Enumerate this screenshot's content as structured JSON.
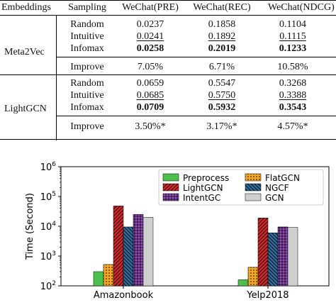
{
  "table": {
    "headers": [
      "Embeddings",
      "Sampling",
      "WeChat(PRE)",
      "WeChat(REC)",
      "WeChat(NDCG)"
    ],
    "groups": [
      {
        "name": "Meta2Vec",
        "rows": [
          {
            "sampling": "Random",
            "pre": "0.0237",
            "rec": "0.1858",
            "ndcg": "0.1104"
          },
          {
            "sampling": "Intuitive",
            "pre": "0.0241",
            "rec": "0.1892",
            "ndcg": "0.1115"
          },
          {
            "sampling": "Infomax",
            "pre": "0.0258",
            "rec": "0.2019",
            "ndcg": "0.1233"
          }
        ],
        "improve": {
          "label": "Improve",
          "pre": "7.05%",
          "rec": "6.71%",
          "ndcg": "10.58%"
        }
      },
      {
        "name": "LightGCN",
        "rows": [
          {
            "sampling": "Random",
            "pre": "0.0659",
            "rec": "0.5547",
            "ndcg": "0.3268"
          },
          {
            "sampling": "Intuitive",
            "pre": "0.0685",
            "rec": "0.5750",
            "ndcg": "0.3388"
          },
          {
            "sampling": "Infomax",
            "pre": "0.0709",
            "rec": "0.5932",
            "ndcg": "0.3543"
          }
        ],
        "improve": {
          "label": "Improve",
          "pre": "3.50%*",
          "rec": "3.17%*",
          "ndcg": "4.57%*"
        }
      }
    ]
  },
  "chart_data": {
    "type": "bar",
    "ylabel": "Time (Second)",
    "yscale": "log",
    "ylim": [
      100,
      1000000
    ],
    "yticks": [
      "10^2",
      "10^3",
      "10^4",
      "10^5",
      "10^6"
    ],
    "categories": [
      "Amazonbook",
      "Yelp2018"
    ],
    "legend_position": "top-right",
    "series": [
      {
        "name": "Preprocess",
        "color": "#4cc04c",
        "hatch": "none",
        "values": [
          300,
          160
        ]
      },
      {
        "name": "FlatGCN",
        "color": "#f5a623",
        "hatch": "dots",
        "values": [
          520,
          420
        ]
      },
      {
        "name": "LightGCN",
        "color": "#d62728",
        "hatch": "diagonal",
        "values": [
          48000,
          19000
        ]
      },
      {
        "name": "NGCF",
        "color": "#2e6e9e",
        "hatch": "backslash",
        "values": [
          9500,
          6000
        ]
      },
      {
        "name": "IntentGC",
        "color": "#9a4fc6",
        "hatch": "grid",
        "values": [
          25000,
          9500
        ]
      },
      {
        "name": "GCN",
        "color": "#cfcfcf",
        "hatch": "none",
        "values": [
          20000,
          9200
        ]
      }
    ]
  }
}
